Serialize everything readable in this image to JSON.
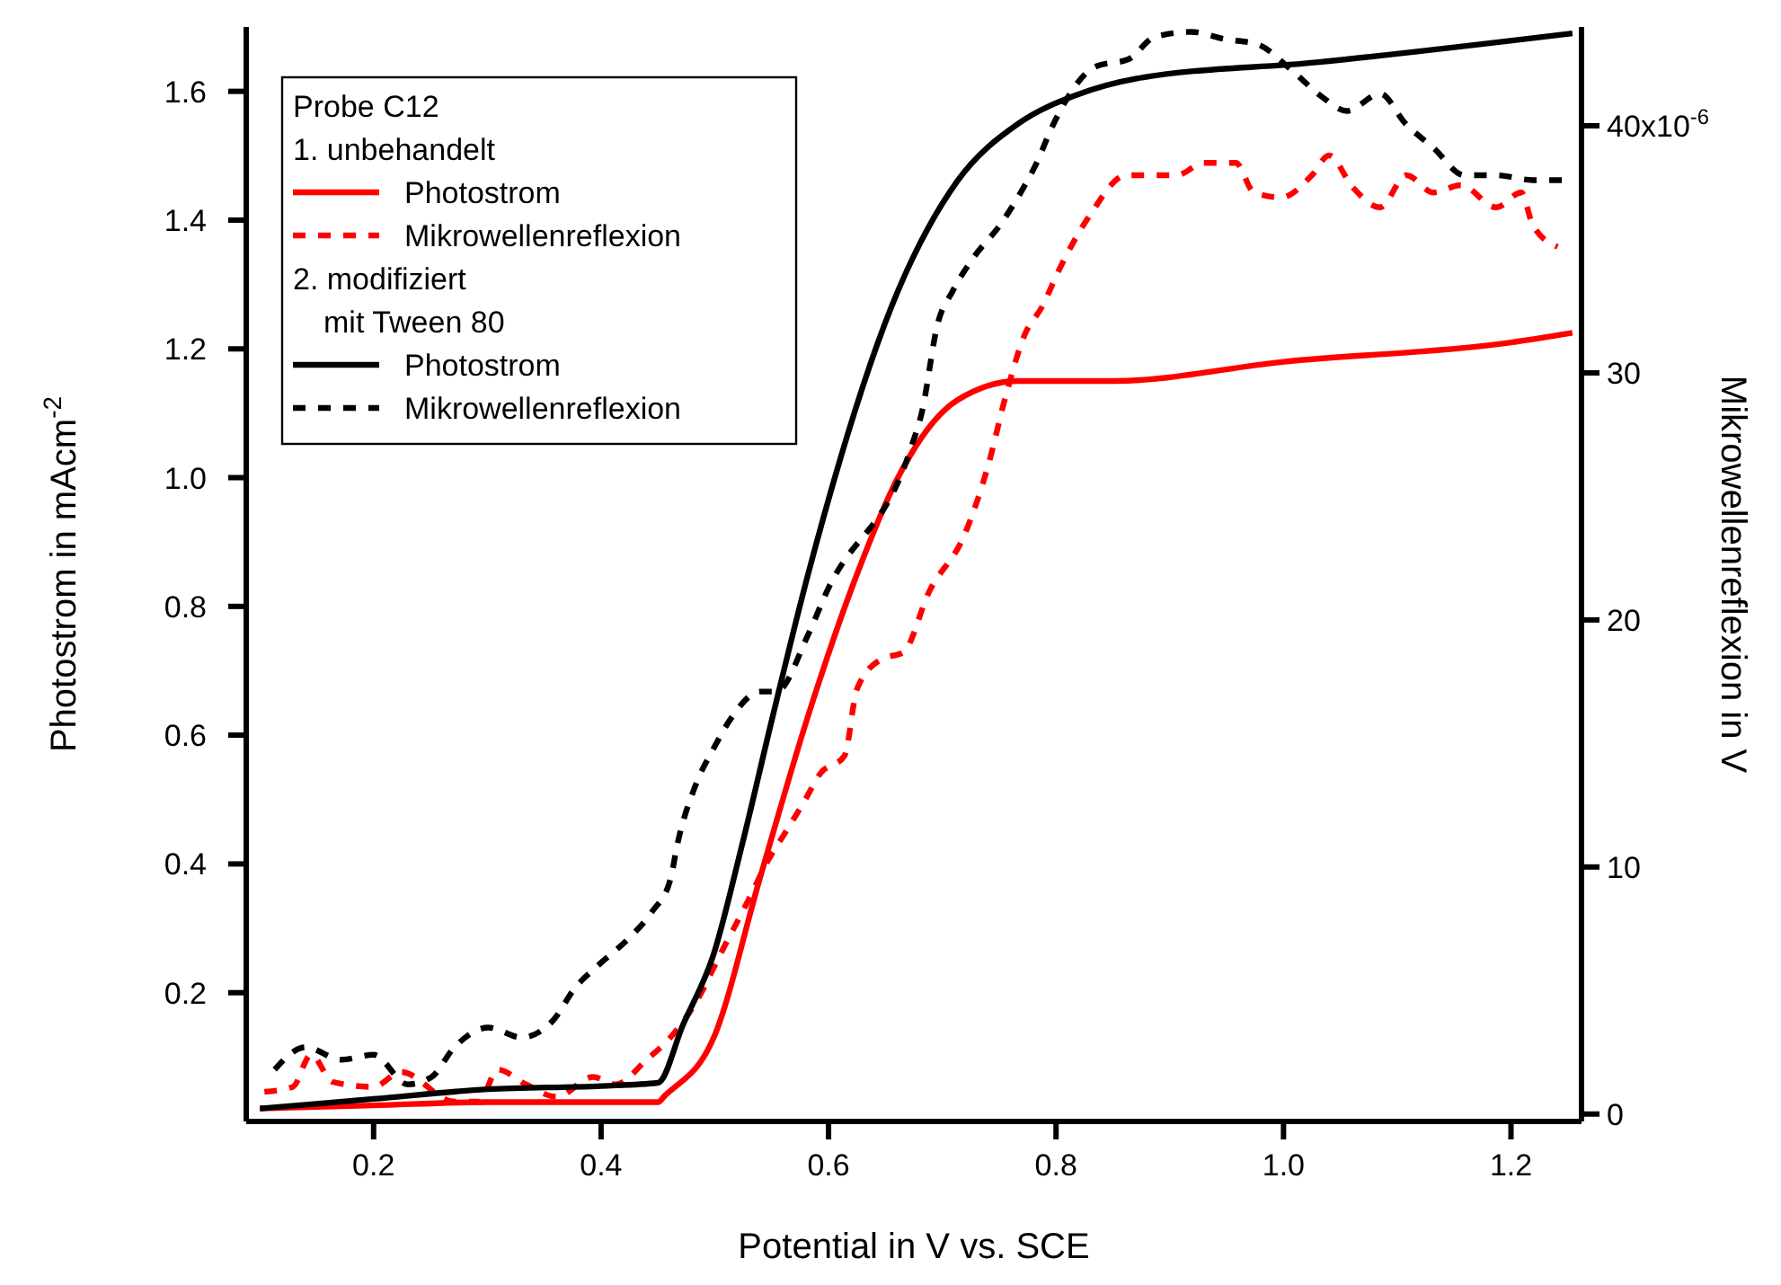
{
  "chart_data": {
    "type": "line",
    "xlabel": "Potential in V vs. SCE",
    "ylabel": "Photostrom in mAcm$^{-2}$",
    "y2label": "Mikrowellenreflexion in V",
    "legend_title": "Probe C12",
    "legend": "top left",
    "annotations": [
      "1. unbehandelt",
      "2. modifiziert\nmit Tween 80",
      "x10$^{-6}$"
    ],
    "xlim": [
      0.088,
      1.262
    ],
    "xticks": [
      0.2,
      0.4,
      0.6,
      0.8,
      {
        "value": 1,
        "label": "1.0"
      },
      1.2
    ],
    "ylim": [
      0,
      1.7
    ],
    "yticks": [
      0.2,
      0.4,
      0.6,
      0.8,
      {
        "value": 1,
        "label": "1.0"
      },
      1.2,
      1.4,
      1.6
    ],
    "y2lim": [
      -0.3,
      44
    ],
    "y2ticks": [
      0,
      10,
      20,
      30,
      40
    ],
    "series": [
      {
        "name": "Photostrom",
        "color": "#ff0000",
        "line_style": "solid",
        "x": [
          0.1,
          0.2,
          0.3,
          0.4,
          0.45,
          0.456,
          0.499,
          0.54,
          0.582,
          0.625,
          0.661,
          0.713,
          0.767,
          0.85,
          1.0,
          1.2,
          1.254
        ],
        "values": [
          0.02,
          0.025,
          0.03,
          0.03,
          0.03,
          0.04,
          0.13,
          0.38,
          0.63,
          0.85,
          1.0,
          1.12,
          1.15,
          1.15,
          1.18,
          1.21,
          1.225
        ]
      },
      {
        "name": "Mikrowellenreflexion",
        "color": "#ff0000",
        "line_style": "dotted",
        "axis": "y2",
        "x": [
          0.104,
          0.129,
          0.145,
          0.164,
          0.2,
          0.224,
          0.271,
          0.293,
          0.309,
          0.334,
          0.361,
          0.393,
          0.413,
          0.44,
          0.461,
          0.488,
          0.503,
          0.53,
          0.546,
          0.562,
          0.578,
          0.593,
          0.614,
          0.625,
          0.646,
          0.666,
          0.688,
          0.72,
          0.74,
          0.756,
          0.772,
          0.788,
          0.803,
          0.83,
          0.862,
          0.878,
          0.906,
          0.93,
          0.958,
          0.974,
          0.998,
          1.025,
          1.04,
          1.061,
          1.085,
          1.108,
          1.132,
          1.156,
          1.187,
          1.209,
          1.219,
          1.241
        ],
        "values": [
          0.9,
          1.1,
          2.4,
          1.3,
          1.1,
          1.7,
          0.5,
          0.5,
          1.8,
          1.2,
          0.7,
          1.5,
          1.2,
          2.2,
          3.1,
          4.9,
          6.3,
          8.7,
          10.2,
          11.4,
          12.6,
          13.8,
          14.5,
          17.2,
          18.4,
          18.7,
          21.1,
          23.5,
          26.2,
          29.1,
          31.5,
          32.7,
          34.2,
          36.4,
          38.0,
          38.0,
          38.0,
          38.5,
          38.5,
          37.3,
          37.1,
          38.0,
          38.8,
          37.5,
          36.7,
          38.0,
          37.3,
          37.6,
          36.7,
          37.3,
          36.0,
          35.1
        ]
      },
      {
        "name": "Photostrom",
        "color": "#000000",
        "line_style": "solid",
        "x": [
          0.1,
          0.2,
          0.3,
          0.4,
          0.45,
          0.472,
          0.499,
          0.524,
          0.551,
          0.582,
          0.661,
          0.713,
          0.767,
          0.819,
          0.871,
          1.029,
          1.254
        ],
        "values": [
          0.02,
          0.035,
          0.05,
          0.055,
          0.06,
          0.15,
          0.26,
          0.43,
          0.63,
          0.85,
          1.29,
          1.46,
          1.55,
          1.595,
          1.62,
          1.645,
          1.69
        ]
      },
      {
        "name": "Mikrowellenreflexion",
        "color": "#000000",
        "line_style": "dotted",
        "axis": "y2",
        "x": [
          0.113,
          0.14,
          0.172,
          0.2,
          0.23,
          0.251,
          0.271,
          0.301,
          0.33,
          0.358,
          0.377,
          0.397,
          0.424,
          0.445,
          0.461,
          0.467,
          0.483,
          0.499,
          0.514,
          0.54,
          0.554,
          0.582,
          0.598,
          0.672,
          0.682,
          0.696,
          0.709,
          0.728,
          0.751,
          0.769,
          0.783,
          0.796,
          0.835,
          0.864,
          0.887,
          0.919,
          0.949,
          0.977,
          1.006,
          1.033,
          1.056,
          1.085,
          1.107,
          1.132,
          1.159,
          1.187,
          1.219,
          1.25
        ],
        "values": [
          1.8,
          2.7,
          2.2,
          2.4,
          1.2,
          1.5,
          2.7,
          3.5,
          3.1,
          3.8,
          5.1,
          6.0,
          7.1,
          8.2,
          9.5,
          10.9,
          13.3,
          14.8,
          16.0,
          17.1,
          17.1,
          19.4,
          21.1,
          26.9,
          28.4,
          32.0,
          33.3,
          34.7,
          36.0,
          37.3,
          38.5,
          39.9,
          42.4,
          42.7,
          43.6,
          43.8,
          43.5,
          43.3,
          42.3,
          41.2,
          40.6,
          41.3,
          40.1,
          39.1,
          38.0,
          38.0,
          37.8,
          37.8
        ]
      }
    ]
  }
}
